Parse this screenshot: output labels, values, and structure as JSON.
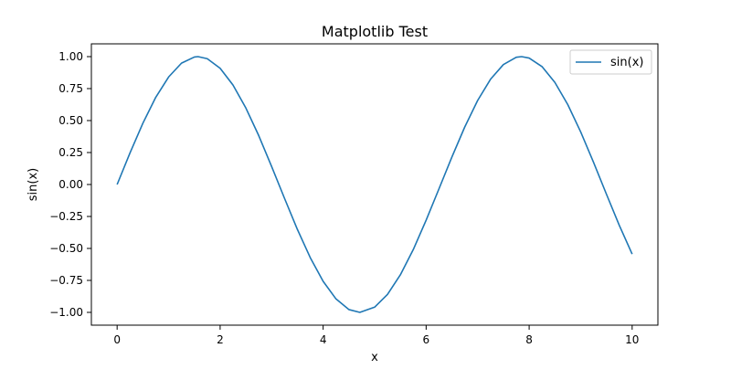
{
  "chart_data": {
    "type": "line",
    "title": "Matplotlib Test",
    "xlabel": "x",
    "ylabel": "sin(x)",
    "xlim": [
      -0.5,
      10.5
    ],
    "ylim": [
      -1.1,
      1.1
    ],
    "x_ticks": [
      {
        "value": 0,
        "label": "0"
      },
      {
        "value": 2,
        "label": "2"
      },
      {
        "value": 4,
        "label": "4"
      },
      {
        "value": 6,
        "label": "6"
      },
      {
        "value": 8,
        "label": "8"
      },
      {
        "value": 10,
        "label": "10"
      }
    ],
    "y_ticks": [
      {
        "value": -1.0,
        "label": "−1.00"
      },
      {
        "value": -0.75,
        "label": "−0.75"
      },
      {
        "value": -0.5,
        "label": "−0.50"
      },
      {
        "value": -0.25,
        "label": "−0.25"
      },
      {
        "value": 0.0,
        "label": "0.00"
      },
      {
        "value": 0.25,
        "label": "0.25"
      },
      {
        "value": 0.5,
        "label": "0.50"
      },
      {
        "value": 0.75,
        "label": "0.75"
      },
      {
        "value": 1.0,
        "label": "1.00"
      }
    ],
    "grid": false,
    "legend_position": "top-right",
    "series": [
      {
        "name": "sin(x)",
        "color": "#1f77b4",
        "x": [
          0,
          0.25,
          0.5,
          0.75,
          1,
          1.25,
          1.5,
          1.5708,
          1.75,
          2,
          2.25,
          2.5,
          2.75,
          3,
          3.25,
          3.5,
          3.75,
          4,
          4.25,
          4.5,
          4.7124,
          5,
          5.25,
          5.5,
          5.75,
          6,
          6.25,
          6.5,
          6.75,
          7,
          7.25,
          7.5,
          7.75,
          7.854,
          8,
          8.25,
          8.5,
          8.75,
          9,
          9.25,
          9.5,
          9.75,
          10
        ],
        "y": [
          0,
          0.247,
          0.479,
          0.682,
          0.841,
          0.949,
          0.997,
          1.0,
          0.984,
          0.909,
          0.778,
          0.598,
          0.382,
          0.141,
          -0.108,
          -0.351,
          -0.572,
          -0.757,
          -0.895,
          -0.978,
          -1.0,
          -0.959,
          -0.859,
          -0.706,
          -0.509,
          -0.279,
          -0.033,
          0.215,
          0.45,
          0.657,
          0.823,
          0.938,
          0.995,
          1.0,
          0.989,
          0.922,
          0.798,
          0.625,
          0.412,
          0.174,
          -0.075,
          -0.319,
          -0.544
        ]
      }
    ]
  }
}
